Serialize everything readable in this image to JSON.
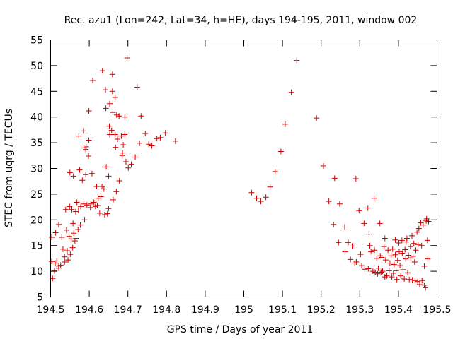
{
  "chart_data": {
    "type": "scatter",
    "title": "Rec. azu1 (Lon=242, Lat=34, h=HE), days 194-195, 2011, window 002",
    "xlabel": "GPS time / Days of year 2011",
    "ylabel": "STEC from uqrg / TECUs",
    "xlim": [
      194.5,
      195.5
    ],
    "ylim": [
      5,
      55
    ],
    "x_ticks": [
      "194.5",
      "194.6",
      "194.7",
      "194.8",
      "194.9",
      "195",
      "195.1",
      "195.2",
      "195.3",
      "195.4",
      "195.5"
    ],
    "y_ticks": [
      "5",
      "10",
      "15",
      "20",
      "25",
      "30",
      "35",
      "40",
      "45",
      "50",
      "55"
    ],
    "grid": false,
    "marker": "plus",
    "color": "#cc0000",
    "points": [
      [
        194.503,
        16.6
      ],
      [
        194.503,
        11.9
      ],
      [
        194.505,
        8.6
      ],
      [
        194.51,
        10.1
      ],
      [
        194.512,
        11.6
      ],
      [
        194.513,
        17.5
      ],
      [
        194.516,
        12.0
      ],
      [
        194.521,
        19.1
      ],
      [
        194.521,
        11.0
      ],
      [
        194.521,
        10.6
      ],
      [
        194.526,
        11.2
      ],
      [
        194.529,
        16.6
      ],
      [
        194.532,
        14.3
      ],
      [
        194.536,
        12.8
      ],
      [
        194.536,
        11.8
      ],
      [
        194.539,
        22.0
      ],
      [
        194.541,
        18.0
      ],
      [
        194.543,
        14.0
      ],
      [
        194.545,
        12.2
      ],
      [
        194.548,
        16.8
      ],
      [
        194.549,
        22.6
      ],
      [
        194.55,
        29.2
      ],
      [
        194.551,
        13.3
      ],
      [
        194.553,
        16.3
      ],
      [
        194.555,
        22.0
      ],
      [
        194.557,
        14.6
      ],
      [
        194.558,
        19.3
      ],
      [
        194.559,
        28.5
      ],
      [
        194.56,
        17.4
      ],
      [
        194.563,
        15.9
      ],
      [
        194.565,
        21.6
      ],
      [
        194.566,
        16.4
      ],
      [
        194.568,
        23.4
      ],
      [
        194.571,
        18.1
      ],
      [
        194.572,
        21.9
      ],
      [
        194.573,
        36.3
      ],
      [
        194.575,
        29.7
      ],
      [
        194.577,
        19.0
      ],
      [
        194.578,
        22.6
      ],
      [
        194.582,
        27.7
      ],
      [
        194.585,
        37.3
      ],
      [
        194.586,
        34.0
      ],
      [
        194.586,
        23.1
      ],
      [
        194.588,
        20.0
      ],
      [
        194.591,
        33.7
      ],
      [
        194.591,
        28.8
      ],
      [
        194.592,
        34.2
      ],
      [
        194.594,
        22.9
      ],
      [
        194.598,
        32.4
      ],
      [
        194.599,
        41.2
      ],
      [
        194.599,
        35.5
      ],
      [
        194.603,
        22.4
      ],
      [
        194.604,
        23.1
      ],
      [
        194.607,
        29.0
      ],
      [
        194.609,
        47.1
      ],
      [
        194.612,
        23.4
      ],
      [
        194.616,
        22.6
      ],
      [
        194.619,
        26.5
      ],
      [
        194.621,
        22.8
      ],
      [
        194.623,
        24.2
      ],
      [
        194.627,
        21.3
      ],
      [
        194.63,
        24.5
      ],
      [
        194.633,
        26.5
      ],
      [
        194.634,
        49.0
      ],
      [
        194.638,
        26.0
      ],
      [
        194.64,
        21.0
      ],
      [
        194.642,
        45.3
      ],
      [
        194.643,
        41.7
      ],
      [
        194.644,
        30.3
      ],
      [
        194.647,
        21.2
      ],
      [
        194.65,
        22.2
      ],
      [
        194.65,
        28.5
      ],
      [
        194.652,
        38.2
      ],
      [
        194.653,
        36.6
      ],
      [
        194.653,
        42.6
      ],
      [
        194.658,
        37.4
      ],
      [
        194.66,
        45.0
      ],
      [
        194.66,
        48.3
      ],
      [
        194.661,
        40.9
      ],
      [
        194.662,
        23.9
      ],
      [
        194.667,
        43.8
      ],
      [
        194.667,
        36.6
      ],
      [
        194.668,
        34.1
      ],
      [
        194.67,
        25.5
      ],
      [
        194.671,
        40.4
      ],
      [
        194.673,
        35.7
      ],
      [
        194.677,
        40.2
      ],
      [
        194.678,
        27.6
      ],
      [
        194.683,
        36.3
      ],
      [
        194.685,
        32.5
      ],
      [
        194.686,
        33.0
      ],
      [
        194.688,
        34.6
      ],
      [
        194.692,
        40.0
      ],
      [
        194.692,
        36.6
      ],
      [
        194.695,
        31.3
      ],
      [
        194.698,
        51.5
      ],
      [
        194.701,
        30.1
      ],
      [
        194.709,
        30.8
      ],
      [
        194.719,
        32.2
      ],
      [
        194.724,
        45.8
      ],
      [
        194.73,
        34.9
      ],
      [
        194.734,
        40.2
      ],
      [
        194.745,
        36.8
      ],
      [
        194.754,
        34.7
      ],
      [
        194.762,
        34.4
      ],
      [
        194.775,
        35.8
      ],
      [
        194.784,
        36.0
      ],
      [
        194.797,
        36.9
      ],
      [
        194.823,
        35.3
      ],
      [
        195.02,
        25.3
      ],
      [
        195.033,
        24.2
      ],
      [
        195.044,
        23.6
      ],
      [
        195.057,
        24.4
      ],
      [
        195.068,
        26.4
      ],
      [
        195.081,
        29.4
      ],
      [
        195.096,
        33.3
      ],
      [
        195.107,
        38.6
      ],
      [
        195.123,
        44.8
      ],
      [
        195.137,
        51.0
      ],
      [
        195.188,
        39.8
      ],
      [
        195.206,
        30.5
      ],
      [
        195.22,
        23.6
      ],
      [
        195.232,
        19.1
      ],
      [
        195.235,
        28.1
      ],
      [
        195.245,
        15.6
      ],
      [
        195.248,
        23.1
      ],
      [
        195.261,
        18.6
      ],
      [
        195.262,
        13.8
      ],
      [
        195.27,
        15.6
      ],
      [
        195.276,
        12.3
      ],
      [
        195.282,
        14.9
      ],
      [
        195.287,
        11.6
      ],
      [
        195.29,
        28.0
      ],
      [
        195.291,
        11.8
      ],
      [
        195.298,
        21.8
      ],
      [
        195.302,
        13.3
      ],
      [
        195.305,
        11.1
      ],
      [
        195.311,
        19.3
      ],
      [
        195.313,
        10.4
      ],
      [
        195.321,
        22.3
      ],
      [
        195.322,
        10.5
      ],
      [
        195.324,
        17.2
      ],
      [
        195.326,
        15.0
      ],
      [
        195.329,
        13.8
      ],
      [
        195.334,
        10.0
      ],
      [
        195.337,
        24.2
      ],
      [
        195.338,
        14.1
      ],
      [
        195.34,
        9.8
      ],
      [
        195.344,
        12.5
      ],
      [
        195.348,
        10.6
      ],
      [
        195.352,
        19.3
      ],
      [
        195.353,
        13.0
      ],
      [
        195.355,
        9.8
      ],
      [
        195.357,
        12.7
      ],
      [
        195.359,
        10.0
      ],
      [
        195.363,
        14.8
      ],
      [
        195.365,
        16.4
      ],
      [
        195.367,
        12.2
      ],
      [
        195.37,
        9.1
      ],
      [
        195.373,
        14.1
      ],
      [
        195.376,
        10.1
      ],
      [
        195.378,
        11.6
      ],
      [
        195.381,
        13.0
      ],
      [
        195.383,
        8.9
      ],
      [
        195.385,
        14.3
      ],
      [
        195.387,
        9.6
      ],
      [
        195.389,
        11.3
      ],
      [
        195.392,
        16.1
      ],
      [
        195.392,
        13.2
      ],
      [
        195.394,
        10.1
      ],
      [
        195.396,
        8.4
      ],
      [
        195.398,
        12.1
      ],
      [
        195.401,
        15.5
      ],
      [
        195.402,
        13.8
      ],
      [
        195.404,
        11.1
      ],
      [
        195.406,
        9.1
      ],
      [
        195.409,
        16.0
      ],
      [
        195.41,
        13.5
      ],
      [
        195.412,
        10.3
      ],
      [
        195.415,
        8.5
      ],
      [
        195.417,
        14.2
      ],
      [
        195.419,
        12.4
      ],
      [
        195.42,
        15.7
      ],
      [
        195.422,
        16.4
      ],
      [
        195.424,
        9.7
      ],
      [
        195.426,
        13.1
      ],
      [
        195.428,
        8.4
      ],
      [
        195.431,
        14.8
      ],
      [
        195.432,
        12.6
      ],
      [
        195.435,
        16.9
      ],
      [
        195.436,
        8.3
      ],
      [
        195.438,
        12.9
      ],
      [
        195.44,
        15.4
      ],
      [
        195.442,
        11.8
      ],
      [
        195.443,
        8.2
      ],
      [
        195.445,
        14.1
      ],
      [
        195.448,
        17.6
      ],
      [
        195.45,
        8.0
      ],
      [
        195.451,
        15.2
      ],
      [
        195.453,
        18.3
      ],
      [
        195.455,
        7.4
      ],
      [
        195.458,
        19.4
      ],
      [
        195.46,
        15.0
      ],
      [
        195.461,
        8.2
      ],
      [
        195.464,
        19.0
      ],
      [
        195.467,
        7.3
      ],
      [
        195.47,
        6.8
      ],
      [
        195.472,
        19.8
      ],
      [
        195.473,
        20.2
      ],
      [
        195.475,
        16.0
      ],
      [
        195.476,
        12.4
      ],
      [
        195.478,
        19.7
      ],
      [
        195.467,
        11.0
      ],
      [
        195.365,
        8.9
      ],
      [
        195.346,
        9.5
      ]
    ]
  }
}
